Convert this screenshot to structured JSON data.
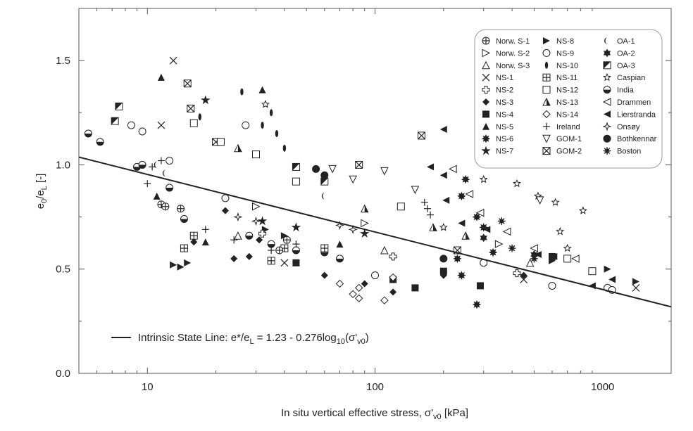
{
  "chart_data": {
    "type": "scatter",
    "title": "",
    "xlabel": {
      "main": "In situ vertical effective stress, σ'",
      "sub": "v0",
      "unit": " [kPa]"
    },
    "ylabel": {
      "e": "e",
      "sub0": "0",
      "slash": "/e",
      "subL": "L",
      "unit": " [-]"
    },
    "x_scale": "log",
    "xlim": [
      5,
      2000
    ],
    "ylim": [
      0.0,
      1.75
    ],
    "x_ticks": [
      10,
      100,
      1000
    ],
    "x_tick_labels": [
      "10",
      "100",
      "1000"
    ],
    "y_ticks": [
      0.0,
      0.5,
      1.0,
      1.5
    ],
    "y_tick_labels": [
      "0.0",
      "0.5",
      "1.0",
      "1.5"
    ],
    "line": {
      "name": "Intrinsic State Line",
      "intercept": 1.23,
      "slope": -0.276,
      "label_a": "Intrinsic State Line: e*/e",
      "label_a_sub": "L",
      "label_b": " = 1.23 - 0.276log",
      "label_b_sub": "10",
      "label_c": "(σ'",
      "label_c_sub": "v0",
      "label_d": ")"
    },
    "legend_position": "top-right",
    "legend": [
      [
        "Norw. S-1",
        "Norw. S-2",
        "Norw. S-3",
        "NS-1",
        "NS-2",
        "NS-3",
        "NS-4",
        "NS-5",
        "NS-6",
        "NS-7"
      ],
      [
        "NS-8",
        "NS-9",
        "NS-10",
        "NS-11",
        "NS-12",
        "NS-13",
        "NS-14",
        "Ireland",
        "GOM-1",
        "GOM-2"
      ],
      [
        "OA-1",
        "OA-2",
        "OA-3",
        "Caspian",
        "India",
        "Drammen",
        "Lierstranda",
        "Onsøy",
        "Bothkennar",
        "Boston"
      ]
    ],
    "series": [
      {
        "name": "NS-1",
        "points": [
          [
            13,
            1.5
          ],
          [
            11.5,
            1.19
          ],
          [
            40,
            0.53
          ],
          [
            450,
            0.45
          ],
          [
            1400,
            0.41
          ]
        ]
      },
      {
        "name": "NS-5",
        "points": [
          [
            11.5,
            1.42
          ],
          [
            32,
            1.36
          ],
          [
            11,
            0.85
          ],
          [
            18,
            0.63
          ],
          [
            70,
            0.62
          ],
          [
            25,
            0.66
          ]
        ]
      },
      {
        "name": "NS-3",
        "points": [
          [
            22,
            0.78
          ],
          [
            24,
            0.55
          ],
          [
            16,
            0.63
          ],
          [
            31,
            0.64
          ],
          [
            120,
            0.39
          ],
          [
            200,
            0.47
          ],
          [
            450,
            0.47
          ],
          [
            28,
            0.56
          ],
          [
            60,
            0.47
          ],
          [
            90,
            0.43
          ]
        ]
      },
      {
        "name": "NS-4",
        "points": [
          [
            45,
            0.53
          ],
          [
            120,
            0.45
          ],
          [
            200,
            0.49
          ],
          [
            290,
            0.42
          ],
          [
            600,
            0.56
          ],
          [
            150,
            0.41
          ]
        ]
      },
      {
        "name": "NS-8",
        "points": [
          [
            13,
            0.52
          ],
          [
            14,
            0.51
          ],
          [
            15,
            0.53
          ],
          [
            40,
            0.66
          ],
          [
            33,
            0.69
          ],
          [
            600,
            0.54
          ],
          [
            1050,
            0.5
          ],
          [
            1400,
            0.44
          ]
        ]
      },
      {
        "name": "NS-6",
        "points": [
          [
            250,
            0.93
          ],
          [
            280,
            0.75
          ],
          [
            300,
            0.7
          ],
          [
            240,
            0.85
          ],
          [
            330,
            0.58
          ],
          [
            280,
            0.33
          ],
          [
            240,
            0.47
          ],
          [
            230,
            0.55
          ]
        ]
      },
      {
        "name": "NS-7",
        "points": [
          [
            18,
            1.31
          ],
          [
            32,
            0.73
          ],
          [
            90,
            0.67
          ],
          [
            45,
            0.7
          ]
        ]
      },
      {
        "name": "Lierstranda",
        "points": [
          [
            200,
            1.17
          ],
          [
            175,
            0.99
          ],
          [
            200,
            0.95
          ],
          [
            205,
            0.83
          ],
          [
            240,
            0.72
          ],
          [
            310,
            0.69
          ],
          [
            520,
            0.57
          ],
          [
            610,
            0.56
          ],
          [
            900,
            0.42
          ],
          [
            1100,
            0.45
          ]
        ]
      },
      {
        "name": "Drammen",
        "points": [
          [
            220,
            0.98
          ],
          [
            260,
            0.86
          ],
          [
            290,
            0.77
          ],
          [
            380,
            0.68
          ],
          [
            500,
            0.6
          ],
          [
            760,
            0.55
          ]
        ]
      },
      {
        "name": "Caspian",
        "points": [
          [
            33,
            1.29
          ],
          [
            420,
            0.91
          ],
          [
            520,
            0.85
          ],
          [
            620,
            0.82
          ],
          [
            820,
            0.78
          ],
          [
            300,
            0.93
          ],
          [
            650,
            0.68
          ],
          [
            200,
            0.7
          ],
          [
            700,
            0.6
          ]
        ]
      },
      {
        "name": "GOM-1",
        "points": [
          [
            65,
            0.98
          ],
          [
            80,
            0.93
          ],
          [
            150,
            0.88
          ],
          [
            530,
            0.83
          ],
          [
            110,
            0.97
          ]
        ]
      },
      {
        "name": "GOM-2",
        "points": [
          [
            15,
            1.39
          ],
          [
            15.5,
            1.27
          ],
          [
            20,
            1.11
          ],
          [
            160,
            1.14
          ],
          [
            85,
            1.0
          ],
          [
            230,
            0.59
          ]
        ]
      },
      {
        "name": "OA-3",
        "points": [
          [
            7.5,
            1.28
          ],
          [
            7.2,
            1.21
          ],
          [
            45,
            0.99
          ],
          [
            60,
            0.92
          ]
        ]
      },
      {
        "name": "NS-10",
        "points": [
          [
            17,
            1.23
          ],
          [
            26,
            1.35
          ],
          [
            35,
            1.25
          ],
          [
            37,
            1.15
          ],
          [
            40,
            1.08
          ],
          [
            32,
            1.19
          ]
        ]
      },
      {
        "name": "India",
        "points": [
          [
            5.5,
            1.15
          ],
          [
            6.2,
            1.11
          ],
          [
            9,
            0.99
          ],
          [
            9.5,
            1.0
          ],
          [
            12.5,
            0.89
          ],
          [
            14.5,
            0.74
          ],
          [
            28,
            0.66
          ],
          [
            35,
            0.62
          ],
          [
            45,
            0.59
          ],
          [
            60,
            0.58
          ],
          [
            70,
            0.55
          ]
        ]
      },
      {
        "name": "NS-9",
        "points": [
          [
            8.5,
            1.19
          ],
          [
            9.5,
            1.16
          ],
          [
            12.5,
            1.02
          ],
          [
            22,
            0.84
          ],
          [
            27,
            1.19
          ],
          [
            100,
            0.47
          ],
          [
            300,
            0.53
          ],
          [
            600,
            0.42
          ],
          [
            1050,
            0.41
          ],
          [
            1100,
            0.4
          ]
        ]
      },
      {
        "name": "Ireland",
        "points": [
          [
            10,
            0.91
          ],
          [
            10.5,
            0.99
          ],
          [
            11.5,
            1.02
          ],
          [
            18,
            0.69
          ],
          [
            24,
            0.64
          ],
          [
            35,
            0.59
          ],
          [
            45,
            0.62
          ],
          [
            165,
            0.82
          ],
          [
            170,
            0.79
          ],
          [
            175,
            0.76
          ]
        ]
      },
      {
        "name": "NS-11",
        "points": [
          [
            16,
            0.66
          ],
          [
            14.5,
            0.6
          ],
          [
            40,
            0.6
          ],
          [
            35,
            0.54
          ],
          [
            60,
            0.6
          ]
        ]
      },
      {
        "name": "Onsøy",
        "points": [
          [
            25,
            0.75
          ],
          [
            30,
            0.73
          ],
          [
            70,
            0.71
          ],
          [
            80,
            0.69
          ]
        ]
      },
      {
        "name": "Norw. S-1",
        "points": [
          [
            11.5,
            0.81
          ],
          [
            14,
            0.79
          ],
          [
            12,
            0.8
          ],
          [
            38,
            0.59
          ],
          [
            41,
            0.64
          ]
        ]
      },
      {
        "name": "NS-14",
        "points": [
          [
            80,
            0.38
          ],
          [
            85,
            0.36
          ],
          [
            110,
            0.35
          ],
          [
            70,
            0.43
          ],
          [
            85,
            0.41
          ],
          [
            120,
            0.46
          ]
        ]
      },
      {
        "name": "Boston",
        "points": [
          [
            300,
            0.7
          ],
          [
            400,
            0.6
          ],
          [
            500,
            0.55
          ],
          [
            360,
            0.73
          ]
        ]
      },
      {
        "name": "Bothkennar",
        "points": [
          [
            55,
            0.98
          ],
          [
            60,
            0.95
          ],
          [
            200,
            0.55
          ]
        ]
      },
      {
        "name": "OA-1",
        "points": [
          [
            11,
            1.0
          ],
          [
            12,
            0.96
          ],
          [
            60,
            0.85
          ]
        ]
      },
      {
        "name": "OA-2",
        "points": [
          [
            300,
            0.65
          ],
          [
            500,
            0.57
          ]
        ]
      },
      {
        "name": "NS-12",
        "points": [
          [
            16,
            1.2
          ],
          [
            21,
            1.11
          ],
          [
            30,
            1.05
          ],
          [
            45,
            0.92
          ],
          [
            130,
            0.8
          ],
          [
            700,
            0.55
          ],
          [
            900,
            0.49
          ]
        ]
      },
      {
        "name": "NS-13",
        "points": [
          [
            25,
            1.08
          ],
          [
            90,
            0.79
          ],
          [
            180,
            0.7
          ],
          [
            250,
            0.66
          ]
        ]
      },
      {
        "name": "Norw. S-2",
        "points": [
          [
            30,
            0.8
          ],
          [
            90,
            0.72
          ],
          [
            350,
            0.62
          ]
        ]
      },
      {
        "name": "Norw. S-3",
        "points": [
          [
            25,
            0.66
          ],
          [
            110,
            0.59
          ],
          [
            480,
            0.53
          ]
        ]
      },
      {
        "name": "NS-2",
        "points": [
          [
            32,
            0.67
          ],
          [
            120,
            0.56
          ],
          [
            420,
            0.48
          ]
        ]
      }
    ]
  }
}
